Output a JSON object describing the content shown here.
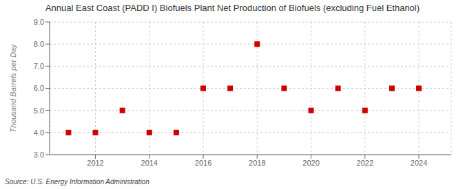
{
  "chart_data": {
    "type": "scatter",
    "title": "Annual East Coast (PADD I) Biofuels Plant Net Production of Biofuels (excluding Fuel Ethanol)",
    "ylabel": "Thousand Barrels per Day",
    "annotations": [
      "Source: U.S. Energy Information Administration"
    ],
    "x": [
      2011,
      2012,
      2013,
      2014,
      2015,
      2016,
      2017,
      2018,
      2019,
      2020,
      2021,
      2022,
      2023,
      2024
    ],
    "values": [
      4.0,
      4.0,
      5.0,
      4.0,
      4.0,
      6.0,
      6.0,
      8.0,
      6.0,
      5.0,
      6.0,
      5.0,
      6.0,
      6.0
    ],
    "color": "#cc0000",
    "marker": "square",
    "xlim": [
      2010.3,
      2025.2
    ],
    "ylim": [
      3.0,
      9.0
    ],
    "xticks": [
      2012,
      2014,
      2016,
      2018,
      2020,
      2022,
      2024
    ],
    "yticks": [
      {
        "value": 3,
        "label": "3.0"
      },
      {
        "value": 4,
        "label": "4.0"
      },
      {
        "value": 5,
        "label": "5.0"
      },
      {
        "value": 6,
        "label": "6.0"
      },
      {
        "value": 7,
        "label": "7.0"
      },
      {
        "value": 8,
        "label": "8.0"
      },
      {
        "value": 9,
        "label": "9.0"
      }
    ],
    "grid": true
  }
}
